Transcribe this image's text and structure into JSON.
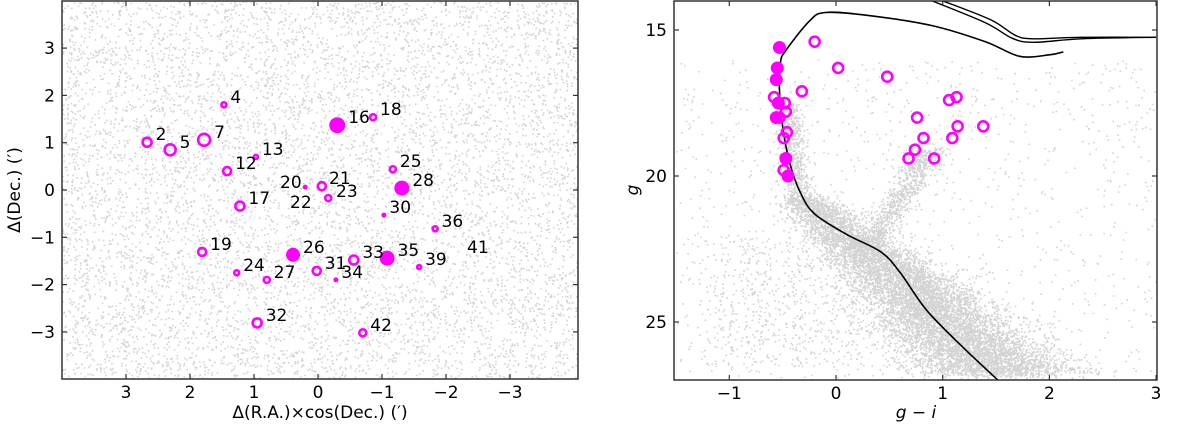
{
  "chart_data": [
    {
      "type": "scatter",
      "title": "",
      "xlabel": "Δ(R.A.)×cos(Dec.) (′)",
      "ylabel": "Δ(Dec.) (′)",
      "xlim": [
        4.0,
        -4.05
      ],
      "ylim": [
        -4.0,
        4.0
      ],
      "x_ticks": [
        3,
        2,
        1,
        0,
        -1,
        -2,
        -3
      ],
      "x_tick_labels": [
        "3",
        "2",
        "1",
        "0",
        "−1",
        "−2",
        "−3"
      ],
      "y_ticks": [
        3,
        2,
        1,
        0,
        -1,
        -2,
        -3
      ],
      "y_tick_labels": [
        "3",
        "2",
        "1",
        "0",
        "−1",
        "−2",
        "−3"
      ],
      "grid": false,
      "background_series": {
        "name": "field stars",
        "color": "#d3d3d3",
        "description": "dense uniform grey dots covering the full field"
      },
      "series": [
        {
          "name": "members",
          "color": "#ff00ff",
          "points": [
            {
              "id": "2",
              "x": 2.67,
              "y": 1.01,
              "marker": "open",
              "size": 5.5
            },
            {
              "id": "5",
              "x": 2.31,
              "y": 0.85,
              "marker": "open",
              "size": 6.5
            },
            {
              "id": "7",
              "x": 1.78,
              "y": 1.06,
              "marker": "open",
              "size": 7
            },
            {
              "id": "4",
              "x": 1.47,
              "y": 1.8,
              "marker": "open",
              "size": 3.5
            },
            {
              "id": "13",
              "x": 0.97,
              "y": 0.7,
              "marker": "open",
              "size": 3
            },
            {
              "id": "12",
              "x": 1.42,
              "y": 0.4,
              "marker": "open",
              "size": 5
            },
            {
              "id": "16",
              "x": -0.3,
              "y": 1.37,
              "marker": "filled",
              "size": 8
            },
            {
              "id": "18",
              "x": -0.86,
              "y": 1.54,
              "marker": "open",
              "size": 4
            },
            {
              "id": "20",
              "x": 0.2,
              "y": 0.06,
              "marker": "filled",
              "size": 2.5
            },
            {
              "id": "21",
              "x": -0.06,
              "y": 0.08,
              "marker": "open",
              "size": 5
            },
            {
              "id": "22",
              "x": 0.2,
              "y": 0.06,
              "marker": "none",
              "size": 0
            },
            {
              "id": "23",
              "x": -0.16,
              "y": -0.17,
              "marker": "open",
              "size": 4
            },
            {
              "id": "25",
              "x": -1.17,
              "y": 0.44,
              "marker": "open",
              "size": 4
            },
            {
              "id": "28",
              "x": -1.31,
              "y": 0.04,
              "marker": "filled",
              "size": 7.5
            },
            {
              "id": "17",
              "x": 1.22,
              "y": -0.34,
              "marker": "open",
              "size": 5.5
            },
            {
              "id": "30",
              "x": -1.03,
              "y": -0.53,
              "marker": "filled",
              "size": 2.5
            },
            {
              "id": "36",
              "x": -1.83,
              "y": -0.82,
              "marker": "open",
              "size": 3.5
            },
            {
              "id": "19",
              "x": 1.81,
              "y": -1.31,
              "marker": "open",
              "size": 5
            },
            {
              "id": "26",
              "x": 0.39,
              "y": -1.37,
              "marker": "filled",
              "size": 7
            },
            {
              "id": "33",
              "x": -0.56,
              "y": -1.48,
              "marker": "open",
              "size": 5.5
            },
            {
              "id": "35",
              "x": -1.08,
              "y": -1.44,
              "marker": "filled",
              "size": 7.5
            },
            {
              "id": "39",
              "x": -1.58,
              "y": -1.63,
              "marker": "open",
              "size": 3
            },
            {
              "id": "24",
              "x": 1.27,
              "y": -1.75,
              "marker": "open",
              "size": 3.5
            },
            {
              "id": "27",
              "x": 0.8,
              "y": -1.9,
              "marker": "open",
              "size": 4
            },
            {
              "id": "31",
              "x": 0.02,
              "y": -1.71,
              "marker": "open",
              "size": 5
            },
            {
              "id": "34",
              "x": -0.28,
              "y": -1.9,
              "marker": "filled",
              "size": 2.5
            },
            {
              "id": "32",
              "x": 0.95,
              "y": -2.81,
              "marker": "open",
              "size": 5.5
            },
            {
              "id": "41",
              "x": -2.32,
              "y": -1.18,
              "marker": "none",
              "size": 0
            },
            {
              "id": "42",
              "x": -0.7,
              "y": -3.02,
              "marker": "open",
              "size": 4.5
            }
          ]
        }
      ]
    },
    {
      "type": "scatter",
      "title": "",
      "xlabel": "g − i",
      "ylabel": "g",
      "xlim": [
        -1.5,
        3.0
      ],
      "ylim": [
        27.0,
        14.0
      ],
      "y_inverted": true,
      "x_ticks": [
        -1,
        0,
        1,
        2,
        3
      ],
      "x_tick_labels": [
        "−1",
        "0",
        "1",
        "2",
        "3"
      ],
      "y_ticks": [
        15,
        20,
        25
      ],
      "y_tick_labels": [
        "15",
        "20",
        "25"
      ],
      "grid": false,
      "background_series": {
        "name": "field stars CMD",
        "color": "#d3d3d3",
        "description": "main sequence turnoff near g−i≈0.2, g≈21; dense band to g−i≈1.6, g≈26; red giant branch to g−i≈0.9, g≈19"
      },
      "isochrone": {
        "color": "#000000",
        "points": [
          [
            1.52,
            27.0
          ],
          [
            1.2,
            25.9
          ],
          [
            0.85,
            24.6
          ],
          [
            0.6,
            23.3
          ],
          [
            0.42,
            22.6
          ],
          [
            0.1,
            22.0
          ],
          [
            -0.2,
            21.3
          ],
          [
            -0.33,
            20.6
          ],
          [
            -0.43,
            19.6
          ],
          [
            -0.5,
            18.3
          ],
          [
            -0.53,
            17.0
          ],
          [
            -0.52,
            16.1
          ],
          [
            -0.47,
            15.7
          ],
          [
            -0.25,
            14.7
          ],
          [
            -0.1,
            14.4
          ],
          [
            0.3,
            14.5
          ],
          [
            0.9,
            14.85
          ],
          [
            1.4,
            15.4
          ],
          [
            1.72,
            15.9
          ],
          [
            2.0,
            15.85
          ],
          [
            2.13,
            15.75
          ]
        ],
        "branch2": [
          [
            0.9,
            14.0
          ],
          [
            1.4,
            14.75
          ],
          [
            1.65,
            15.28
          ],
          [
            1.85,
            15.42
          ],
          [
            2.3,
            15.3
          ],
          [
            3.0,
            15.25
          ]
        ],
        "branch3": [
          [
            1.0,
            14.0
          ],
          [
            1.45,
            14.65
          ],
          [
            1.68,
            15.18
          ],
          [
            1.85,
            15.3
          ],
          [
            2.3,
            15.25
          ],
          [
            3.0,
            15.25
          ]
        ]
      },
      "series": [
        {
          "name": "members",
          "color": "#ff00ff",
          "points": [
            {
              "x": -0.53,
              "y": 15.6,
              "marker": "filled"
            },
            {
              "x": -0.55,
              "y": 16.3,
              "marker": "filled"
            },
            {
              "x": -0.56,
              "y": 16.7,
              "marker": "filled"
            },
            {
              "x": -0.58,
              "y": 17.3,
              "marker": "open"
            },
            {
              "x": -0.54,
              "y": 17.5,
              "marker": "filled"
            },
            {
              "x": -0.48,
              "y": 17.5,
              "marker": "open"
            },
            {
              "x": -0.47,
              "y": 17.8,
              "marker": "open"
            },
            {
              "x": -0.56,
              "y": 18.0,
              "marker": "filled"
            },
            {
              "x": -0.53,
              "y": 18.0,
              "marker": "open"
            },
            {
              "x": -0.46,
              "y": 18.5,
              "marker": "open"
            },
            {
              "x": -0.49,
              "y": 18.7,
              "marker": "open"
            },
            {
              "x": -0.47,
              "y": 19.4,
              "marker": "filled"
            },
            {
              "x": -0.49,
              "y": 19.8,
              "marker": "open"
            },
            {
              "x": -0.45,
              "y": 20.0,
              "marker": "filled"
            },
            {
              "x": -0.2,
              "y": 15.4,
              "marker": "open"
            },
            {
              "x": 0.02,
              "y": 16.3,
              "marker": "open"
            },
            {
              "x": -0.32,
              "y": 17.1,
              "marker": "open"
            },
            {
              "x": 0.48,
              "y": 16.6,
              "marker": "open"
            },
            {
              "x": 1.06,
              "y": 17.4,
              "marker": "open"
            },
            {
              "x": 1.13,
              "y": 17.3,
              "marker": "open"
            },
            {
              "x": 0.76,
              "y": 18.0,
              "marker": "open"
            },
            {
              "x": 1.14,
              "y": 18.3,
              "marker": "open"
            },
            {
              "x": 1.38,
              "y": 18.3,
              "marker": "open"
            },
            {
              "x": 0.82,
              "y": 18.7,
              "marker": "open"
            },
            {
              "x": 1.09,
              "y": 18.7,
              "marker": "open"
            },
            {
              "x": 0.74,
              "y": 19.1,
              "marker": "open"
            },
            {
              "x": 0.68,
              "y": 19.4,
              "marker": "open"
            },
            {
              "x": 0.92,
              "y": 19.4,
              "marker": "open"
            }
          ]
        }
      ]
    }
  ],
  "colors": {
    "member": "#ff00ff",
    "field": "#d3d3d3",
    "axis": "#333333",
    "isochrone": "#000000"
  }
}
